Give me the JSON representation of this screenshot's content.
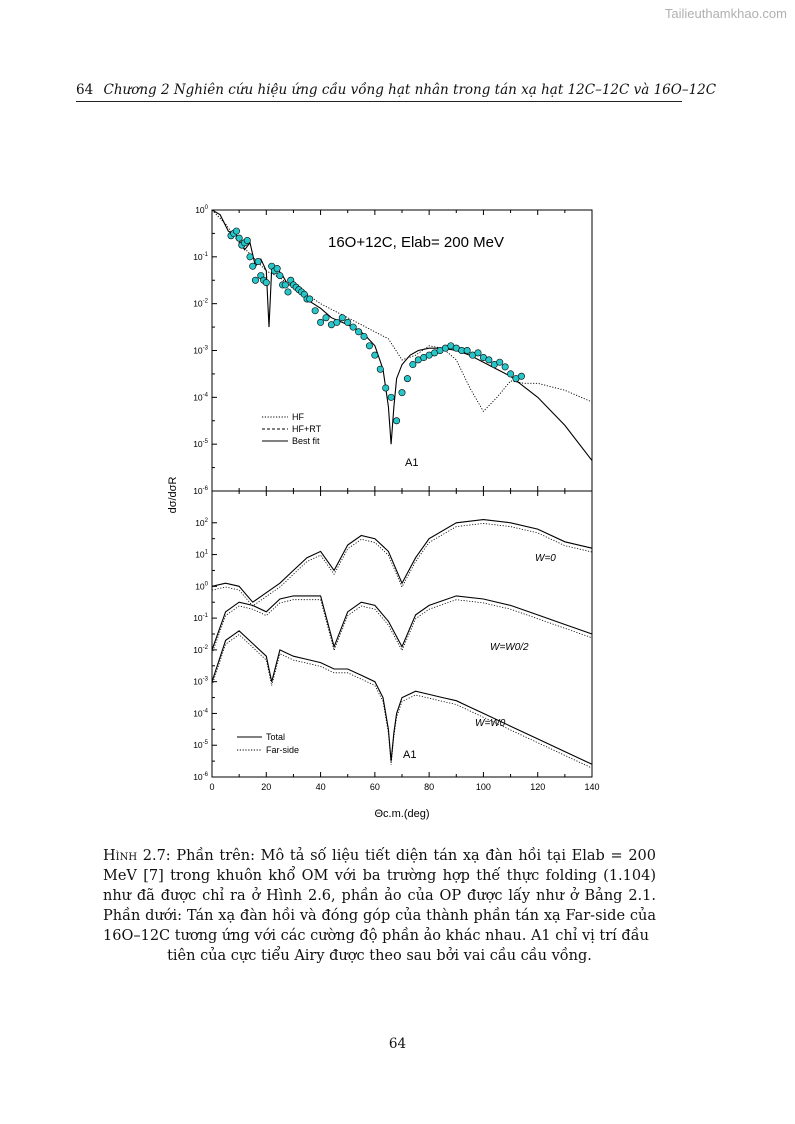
{
  "watermark": "Tailieuthamkhao.com",
  "header": {
    "page_number": "64",
    "title_prefix": "Chương 2 Nghiên cứu hiệu ứng cầu vồng hạt nhân trong tán xạ hạt ",
    "title_formula": "12C–12C và 16O–12C"
  },
  "figure": {
    "top_panel": {
      "title": "16O+12C, Elab= 200 MeV",
      "legend": [
        "HF",
        "HF+RT",
        "Best fit"
      ],
      "annotation": "A1",
      "y_ticks": [
        "10^0",
        "10^-1",
        "10^-2",
        "10^-3",
        "10^-4",
        "10^-5",
        "10^-6"
      ]
    },
    "bottom_panel": {
      "legend": [
        "Total",
        "Far-side"
      ],
      "annotation": "A1",
      "curve_labels": [
        "W=0",
        "W=W0/2",
        "W=W0"
      ],
      "y_ticks": [
        "10^2",
        "10^1",
        "10^0",
        "10^-1",
        "10^-2",
        "10^-3",
        "10^-4",
        "10^-5",
        "10^-6"
      ]
    },
    "y_axis_label": "dσ/dσR",
    "x_axis_label": "Θc.m.(deg)",
    "x_ticks": [
      "0",
      "20",
      "40",
      "60",
      "80",
      "100",
      "120",
      "140"
    ]
  },
  "chart_data": [
    {
      "type": "line",
      "title": "16O+12C, Elab= 200 MeV",
      "xlabel": "Θc.m.(deg)",
      "ylabel": "dσ/dσR",
      "xlim": [
        0,
        140
      ],
      "ylim_log10": [
        -6,
        0
      ],
      "series": [
        {
          "name": "Best fit",
          "style": "solid",
          "x": [
            0,
            3,
            6,
            9,
            12,
            14,
            16,
            18,
            20,
            21,
            22,
            24,
            26,
            28,
            30,
            33,
            36,
            40,
            44,
            48,
            52,
            56,
            60,
            63,
            65,
            66,
            67,
            68,
            70,
            73,
            76,
            80,
            85,
            90,
            95,
            100,
            110,
            120,
            130,
            140
          ],
          "log10_y": [
            0,
            -0.1,
            -0.45,
            -0.55,
            -0.85,
            -0.7,
            -1.2,
            -1.05,
            -1.3,
            -2.5,
            -1.25,
            -1.25,
            -1.4,
            -1.6,
            -1.6,
            -1.75,
            -1.95,
            -2.1,
            -2.3,
            -2.4,
            -2.5,
            -2.65,
            -2.9,
            -3.4,
            -4.2,
            -5.0,
            -4.2,
            -3.6,
            -3.3,
            -3.1,
            -3.0,
            -2.95,
            -2.95,
            -3.0,
            -3.1,
            -3.25,
            -3.55,
            -4.0,
            -4.6,
            -5.35
          ]
        },
        {
          "name": "HF",
          "style": "dotted",
          "x": [
            0,
            5,
            10,
            15,
            20,
            25,
            30,
            35,
            40,
            45,
            50,
            55,
            60,
            65,
            70,
            75,
            80,
            85,
            90,
            95,
            100,
            105,
            110,
            115,
            120,
            130,
            140
          ],
          "log10_y": [
            0,
            -0.3,
            -0.7,
            -1.0,
            -1.3,
            -1.45,
            -1.65,
            -1.8,
            -2.0,
            -2.15,
            -2.3,
            -2.45,
            -2.6,
            -2.75,
            -3.2,
            -3.1,
            -2.9,
            -2.95,
            -3.2,
            -3.8,
            -4.3,
            -4.0,
            -3.65,
            -3.7,
            -3.7,
            -3.85,
            -4.1
          ]
        },
        {
          "name": "Data",
          "style": "markers",
          "x": [
            7,
            8,
            9,
            10,
            11,
            12,
            13,
            14,
            15,
            16,
            17,
            18,
            19,
            20,
            22,
            23,
            24,
            25,
            26,
            27,
            28,
            29,
            30,
            31,
            32,
            33,
            34,
            35,
            36,
            38,
            40,
            42,
            44,
            46,
            48,
            50,
            52,
            54,
            56,
            58,
            60,
            62,
            64,
            66,
            68,
            70,
            72,
            74,
            76,
            78,
            80,
            82,
            84,
            86,
            88,
            90,
            92,
            94,
            96,
            98,
            100,
            102,
            104,
            106,
            108,
            110,
            112,
            114
          ],
          "log10_y": [
            -0.55,
            -0.5,
            -0.45,
            -0.6,
            -0.75,
            -0.7,
            -0.65,
            -1.0,
            -1.2,
            -1.5,
            -1.1,
            -1.4,
            -1.5,
            -1.55,
            -1.2,
            -1.3,
            -1.25,
            -1.4,
            -1.6,
            -1.6,
            -1.75,
            -1.5,
            -1.6,
            -1.65,
            -1.7,
            -1.75,
            -1.8,
            -1.9,
            -1.9,
            -2.15,
            -2.4,
            -2.3,
            -2.45,
            -2.4,
            -2.3,
            -2.4,
            -2.5,
            -2.6,
            -2.7,
            -2.9,
            -3.1,
            -3.4,
            -3.8,
            -4.0,
            -4.5,
            -3.9,
            -3.6,
            -3.3,
            -3.2,
            -3.15,
            -3.1,
            -3.05,
            -3.0,
            -2.95,
            -2.9,
            -2.95,
            -3.0,
            -3.0,
            -3.1,
            -3.05,
            -3.15,
            -3.2,
            -3.3,
            -3.25,
            -3.35,
            -3.5,
            -3.6,
            -3.55
          ]
        }
      ]
    },
    {
      "type": "line",
      "xlabel": "Θc.m.(deg)",
      "xlim": [
        0,
        140
      ],
      "ylim_log10": [
        -6,
        3
      ],
      "series": [
        {
          "name": "Total W=0",
          "style": "solid",
          "x": [
            0,
            5,
            10,
            15,
            20,
            25,
            30,
            35,
            40,
            45,
            50,
            55,
            60,
            65,
            70,
            75,
            80,
            90,
            100,
            110,
            120,
            130,
            140
          ],
          "log10_y": [
            0,
            0.1,
            0,
            -0.5,
            -0.2,
            0.1,
            0.5,
            0.9,
            1.1,
            0.5,
            1.3,
            1.6,
            1.5,
            1.1,
            0.1,
            0.9,
            1.5,
            2.0,
            2.1,
            2.0,
            1.8,
            1.4,
            1.2
          ]
        },
        {
          "name": "Total W=W0/2",
          "style": "solid",
          "x": [
            0,
            5,
            10,
            15,
            20,
            25,
            30,
            35,
            40,
            45,
            50,
            55,
            60,
            65,
            70,
            75,
            80,
            90,
            100,
            110,
            120,
            130,
            140
          ],
          "log10_y": [
            -2,
            -0.8,
            -0.5,
            -0.6,
            -0.8,
            -0.4,
            -0.3,
            -0.3,
            -0.3,
            -1.9,
            -0.8,
            -0.5,
            -0.6,
            -1.1,
            -1.9,
            -0.9,
            -0.6,
            -0.3,
            -0.4,
            -0.6,
            -0.9,
            -1.2,
            -1.5
          ]
        },
        {
          "name": "Total W=W0",
          "style": "solid",
          "x": [
            0,
            5,
            10,
            15,
            20,
            22,
            25,
            30,
            35,
            40,
            45,
            50,
            55,
            60,
            63,
            65,
            66,
            67,
            68,
            70,
            75,
            80,
            85,
            90,
            95,
            100,
            110,
            120,
            130,
            140
          ],
          "log10_y": [
            -3,
            -1.7,
            -1.4,
            -1.8,
            -2.2,
            -3.0,
            -2.0,
            -2.2,
            -2.3,
            -2.4,
            -2.6,
            -2.6,
            -2.8,
            -3.0,
            -3.5,
            -4.5,
            -5.5,
            -4.6,
            -4.0,
            -3.5,
            -3.3,
            -3.4,
            -3.5,
            -3.6,
            -3.8,
            -4.0,
            -4.4,
            -4.8,
            -5.2,
            -5.6
          ]
        }
      ]
    }
  ],
  "caption": {
    "label": "Hình 2.7:",
    "text": "Phần trên: Mô tả số liệu tiết diện tán xạ đàn hồi tại Elab = 200 MeV [7] trong khuôn khổ OM với ba trường hợp thế thực folding (1.104) như đã được chỉ ra ở Hình 2.6, phần ảo của OP được lấy như ở Bảng 2.1. Phần dưới: Tán xạ đàn hồi và đóng góp của thành phần tán xạ Far-side của 16O–12C tương ứng với các cường độ phần ảo khác nhau. A1 chỉ vị trí đầu",
    "last_line": "tiên của cực tiểu Airy được theo sau bởi vai cầu cầu vồng."
  },
  "footer": {
    "page_number": "64"
  }
}
